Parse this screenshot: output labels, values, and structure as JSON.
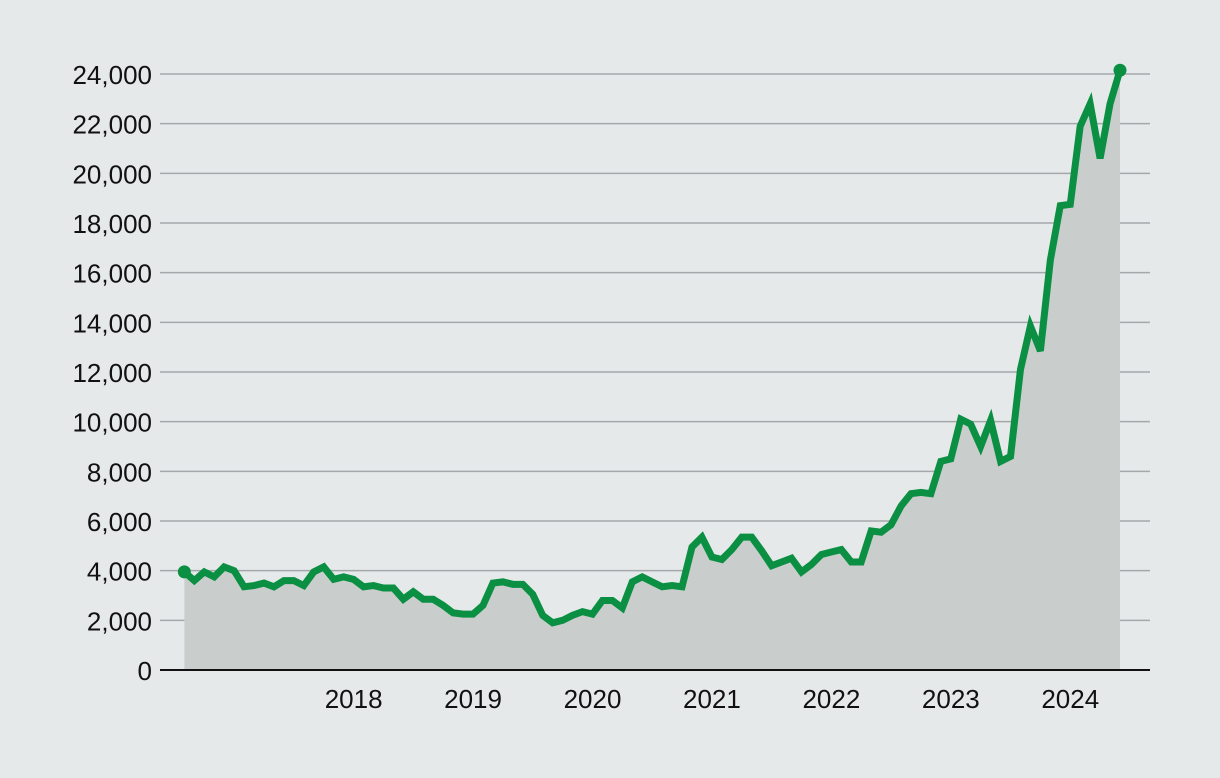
{
  "chart_data": {
    "type": "area",
    "title": "",
    "xlabel": "",
    "ylabel": "",
    "ylim": [
      0,
      24000
    ],
    "grid": true,
    "legend": "none",
    "yticks": [
      0,
      2000,
      4000,
      6000,
      8000,
      10000,
      12000,
      14000,
      16000,
      18000,
      20000,
      22000,
      24000
    ],
    "ytick_labels": [
      "0",
      "2,000",
      "4,000",
      "6,000",
      "8,000",
      "10,000",
      "12,000",
      "14,000",
      "16,000",
      "18,000",
      "20,000",
      "22,000",
      "24,000"
    ],
    "xticks": [
      2018,
      2019,
      2020,
      2021,
      2022,
      2023,
      2024
    ],
    "xtick_labels": [
      "2018",
      "2019",
      "2020",
      "2021",
      "2022",
      "2023",
      "2024"
    ],
    "xlim": [
      2017.08,
      2025.0
    ],
    "series": [
      {
        "name": "value",
        "start_year": 2017.083,
        "step_months": 1,
        "values": [
          3950,
          3600,
          3950,
          3750,
          4150,
          4000,
          3350,
          3400,
          3500,
          3350,
          3600,
          3600,
          3400,
          3950,
          4150,
          3650,
          3750,
          3650,
          3350,
          3400,
          3300,
          3300,
          2850,
          3150,
          2850,
          2850,
          2600,
          2300,
          2250,
          2250,
          2600,
          3500,
          3550,
          3450,
          3450,
          3050,
          2200,
          1900,
          2000,
          2200,
          2350,
          2250,
          2800,
          2800,
          2500,
          3550,
          3750,
          3550,
          3350,
          3400,
          3350,
          4950,
          5350,
          4550,
          4450,
          4850,
          5350,
          5350,
          4800,
          4200,
          4350,
          4500,
          3950,
          4250,
          4650,
          4750,
          4850,
          4350,
          4350,
          5600,
          5550,
          5850,
          6600,
          7100,
          7150,
          7100,
          8400,
          8500,
          10100,
          9900,
          9000,
          10050,
          8400,
          8600,
          12100,
          13850,
          12850,
          16500,
          18700,
          18750,
          21900,
          22800,
          20600,
          22800,
          24150
        ]
      }
    ],
    "colors": {
      "line": "#0a8f43",
      "fill": "#c9cecd",
      "grid": "#a3a8aa",
      "axis": "#111111",
      "background": "#e6e9ea"
    }
  }
}
